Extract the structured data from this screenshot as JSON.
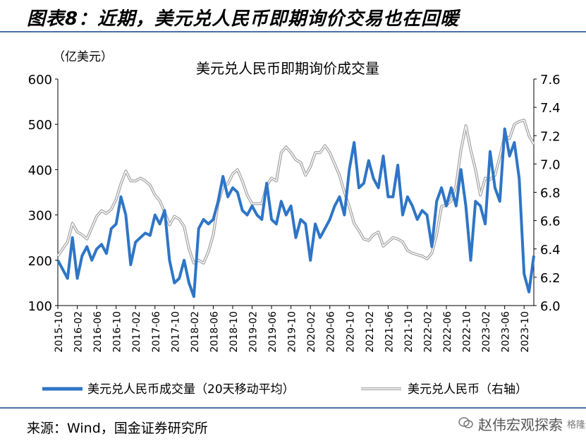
{
  "heading": "图表8：近期，美元兑人民币即期询价交易也在回暖",
  "source": "来源：Wind，国金证券研究所",
  "watermark": {
    "text": "赵伟宏观探索",
    "sub": "格隆汇"
  },
  "chart_data": {
    "type": "line",
    "title": "美元兑人民币即期询价成交量",
    "ylabel_left": "（亿美元）",
    "ylim_left": [
      100,
      600
    ],
    "yticks_left": [
      "100",
      "200",
      "300",
      "400",
      "500",
      "600"
    ],
    "ylim_right": [
      6.0,
      7.6
    ],
    "yticks_right": [
      "6.0",
      "6.2",
      "6.4",
      "6.6",
      "6.8",
      "7.0",
      "7.2",
      "7.4",
      "7.6"
    ],
    "xticks": [
      "2015-10",
      "2016-02",
      "2016-06",
      "2016-10",
      "2017-02",
      "2017-06",
      "2017-10",
      "2018-02",
      "2018-06",
      "2018-10",
      "2019-02",
      "2019-06",
      "2019-10",
      "2020-02",
      "2020-06",
      "2020-10",
      "2021-02",
      "2021-06",
      "2021-10",
      "2022-02",
      "2022-06",
      "2022-10",
      "2023-02",
      "2023-06",
      "2023-10"
    ],
    "legend_position": "bottom",
    "colors": {
      "volume": "#2e75c6",
      "fx": "#a6a6a6"
    },
    "series": [
      {
        "name": "美元兑人民币成交量（20天移动平均）",
        "axis": "left",
        "points": [
          [
            "2015-10",
            200
          ],
          [
            "2015-12",
            160
          ],
          [
            "2016-01",
            250
          ],
          [
            "2016-02",
            160
          ],
          [
            "2016-03",
            210
          ],
          [
            "2016-04",
            230
          ],
          [
            "2016-05",
            200
          ],
          [
            "2016-06",
            225
          ],
          [
            "2016-07",
            235
          ],
          [
            "2016-08",
            215
          ],
          [
            "2016-09",
            270
          ],
          [
            "2016-10",
            280
          ],
          [
            "2016-11",
            340
          ],
          [
            "2016-12",
            300
          ],
          [
            "2017-01",
            190
          ],
          [
            "2017-02",
            240
          ],
          [
            "2017-03",
            250
          ],
          [
            "2017-04",
            260
          ],
          [
            "2017-05",
            255
          ],
          [
            "2017-06",
            300
          ],
          [
            "2017-07",
            280
          ],
          [
            "2017-08",
            310
          ],
          [
            "2017-09",
            200
          ],
          [
            "2017-10",
            150
          ],
          [
            "2017-11",
            160
          ],
          [
            "2017-12",
            200
          ],
          [
            "2018-01",
            150
          ],
          [
            "2018-02",
            120
          ],
          [
            "2018-03",
            270
          ],
          [
            "2018-04",
            290
          ],
          [
            "2018-05",
            280
          ],
          [
            "2018-06",
            290
          ],
          [
            "2018-07",
            330
          ],
          [
            "2018-08",
            385
          ],
          [
            "2018-09",
            340
          ],
          [
            "2018-10",
            360
          ],
          [
            "2018-11",
            350
          ],
          [
            "2018-12",
            310
          ],
          [
            "2019-01",
            300
          ],
          [
            "2019-02",
            320
          ],
          [
            "2019-03",
            300
          ],
          [
            "2019-04",
            290
          ],
          [
            "2019-05",
            370
          ],
          [
            "2019-06",
            290
          ],
          [
            "2019-07",
            280
          ],
          [
            "2019-08",
            330
          ],
          [
            "2019-09",
            300
          ],
          [
            "2019-10",
            320
          ],
          [
            "2019-11",
            250
          ],
          [
            "2019-12",
            290
          ],
          [
            "2020-01",
            280
          ],
          [
            "2020-02",
            200
          ],
          [
            "2020-03",
            280
          ],
          [
            "2020-04",
            250
          ],
          [
            "2020-05",
            270
          ],
          [
            "2020-06",
            290
          ],
          [
            "2020-07",
            320
          ],
          [
            "2020-08",
            340
          ],
          [
            "2020-09",
            300
          ],
          [
            "2020-10",
            400
          ],
          [
            "2020-11",
            460
          ],
          [
            "2020-12",
            360
          ],
          [
            "2021-01",
            370
          ],
          [
            "2021-02",
            420
          ],
          [
            "2021-03",
            380
          ],
          [
            "2021-04",
            360
          ],
          [
            "2021-05",
            430
          ],
          [
            "2021-06",
            340
          ],
          [
            "2021-07",
            340
          ],
          [
            "2021-08",
            410
          ],
          [
            "2021-09",
            300
          ],
          [
            "2021-10",
            340
          ],
          [
            "2021-11",
            320
          ],
          [
            "2021-12",
            290
          ],
          [
            "2022-01",
            310
          ],
          [
            "2022-02",
            300
          ],
          [
            "2022-03",
            230
          ],
          [
            "2022-04",
            330
          ],
          [
            "2022-05",
            360
          ],
          [
            "2022-06",
            320
          ],
          [
            "2022-07",
            360
          ],
          [
            "2022-08",
            320
          ],
          [
            "2022-09",
            400
          ],
          [
            "2022-10",
            320
          ],
          [
            "2022-11",
            200
          ],
          [
            "2022-12",
            330
          ],
          [
            "2023-01",
            320
          ],
          [
            "2023-02",
            280
          ],
          [
            "2023-03",
            440
          ],
          [
            "2023-04",
            360
          ],
          [
            "2023-05",
            330
          ],
          [
            "2023-06",
            490
          ],
          [
            "2023-07",
            430
          ],
          [
            "2023-08",
            460
          ],
          [
            "2023-09",
            380
          ],
          [
            "2023-10",
            170
          ],
          [
            "2023-11",
            130
          ],
          [
            "2023-12",
            210
          ]
        ]
      },
      {
        "name": "美元兑人民币（右轴）",
        "axis": "right",
        "points": [
          [
            "2015-10",
            6.35
          ],
          [
            "2015-12",
            6.45
          ],
          [
            "2016-01",
            6.58
          ],
          [
            "2016-02",
            6.52
          ],
          [
            "2016-03",
            6.5
          ],
          [
            "2016-04",
            6.47
          ],
          [
            "2016-05",
            6.55
          ],
          [
            "2016-06",
            6.63
          ],
          [
            "2016-07",
            6.67
          ],
          [
            "2016-08",
            6.65
          ],
          [
            "2016-09",
            6.68
          ],
          [
            "2016-10",
            6.75
          ],
          [
            "2016-11",
            6.86
          ],
          [
            "2016-12",
            6.95
          ],
          [
            "2017-01",
            6.88
          ],
          [
            "2017-02",
            6.88
          ],
          [
            "2017-03",
            6.9
          ],
          [
            "2017-04",
            6.88
          ],
          [
            "2017-05",
            6.85
          ],
          [
            "2017-06",
            6.78
          ],
          [
            "2017-07",
            6.74
          ],
          [
            "2017-08",
            6.66
          ],
          [
            "2017-09",
            6.57
          ],
          [
            "2017-10",
            6.63
          ],
          [
            "2017-11",
            6.61
          ],
          [
            "2017-12",
            6.56
          ],
          [
            "2018-01",
            6.4
          ],
          [
            "2018-02",
            6.3
          ],
          [
            "2018-03",
            6.32
          ],
          [
            "2018-04",
            6.3
          ],
          [
            "2018-05",
            6.38
          ],
          [
            "2018-06",
            6.5
          ],
          [
            "2018-07",
            6.72
          ],
          [
            "2018-08",
            6.84
          ],
          [
            "2018-09",
            6.86
          ],
          [
            "2018-10",
            6.93
          ],
          [
            "2018-11",
            6.96
          ],
          [
            "2018-12",
            6.88
          ],
          [
            "2019-01",
            6.78
          ],
          [
            "2019-02",
            6.72
          ],
          [
            "2019-03",
            6.72
          ],
          [
            "2019-04",
            6.72
          ],
          [
            "2019-05",
            6.85
          ],
          [
            "2019-06",
            6.9
          ],
          [
            "2019-07",
            6.88
          ],
          [
            "2019-08",
            7.08
          ],
          [
            "2019-09",
            7.12
          ],
          [
            "2019-10",
            7.08
          ],
          [
            "2019-11",
            7.03
          ],
          [
            "2019-12",
            7.01
          ],
          [
            "2020-01",
            6.92
          ],
          [
            "2020-02",
            6.98
          ],
          [
            "2020-03",
            7.08
          ],
          [
            "2020-04",
            7.08
          ],
          [
            "2020-05",
            7.13
          ],
          [
            "2020-06",
            7.08
          ],
          [
            "2020-07",
            7.0
          ],
          [
            "2020-08",
            6.92
          ],
          [
            "2020-09",
            6.8
          ],
          [
            "2020-10",
            6.7
          ],
          [
            "2020-11",
            6.58
          ],
          [
            "2020-12",
            6.53
          ],
          [
            "2021-01",
            6.47
          ],
          [
            "2021-02",
            6.46
          ],
          [
            "2021-03",
            6.5
          ],
          [
            "2021-04",
            6.52
          ],
          [
            "2021-05",
            6.42
          ],
          [
            "2021-06",
            6.45
          ],
          [
            "2021-07",
            6.48
          ],
          [
            "2021-08",
            6.47
          ],
          [
            "2021-09",
            6.45
          ],
          [
            "2021-10",
            6.39
          ],
          [
            "2021-11",
            6.37
          ],
          [
            "2021-12",
            6.36
          ],
          [
            "2022-01",
            6.35
          ],
          [
            "2022-02",
            6.33
          ],
          [
            "2022-03",
            6.37
          ],
          [
            "2022-04",
            6.5
          ],
          [
            "2022-05",
            6.7
          ],
          [
            "2022-06",
            6.71
          ],
          [
            "2022-07",
            6.74
          ],
          [
            "2022-08",
            6.85
          ],
          [
            "2022-09",
            7.1
          ],
          [
            "2022-10",
            7.27
          ],
          [
            "2022-11",
            7.1
          ],
          [
            "2022-12",
            6.96
          ],
          [
            "2023-01",
            6.78
          ],
          [
            "2023-02",
            6.9
          ],
          [
            "2023-03",
            6.89
          ],
          [
            "2023-04",
            6.92
          ],
          [
            "2023-05",
            7.05
          ],
          [
            "2023-06",
            7.2
          ],
          [
            "2023-07",
            7.18
          ],
          [
            "2023-08",
            7.28
          ],
          [
            "2023-09",
            7.3
          ],
          [
            "2023-10",
            7.31
          ],
          [
            "2023-11",
            7.2
          ],
          [
            "2023-12",
            7.14
          ]
        ]
      }
    ]
  }
}
